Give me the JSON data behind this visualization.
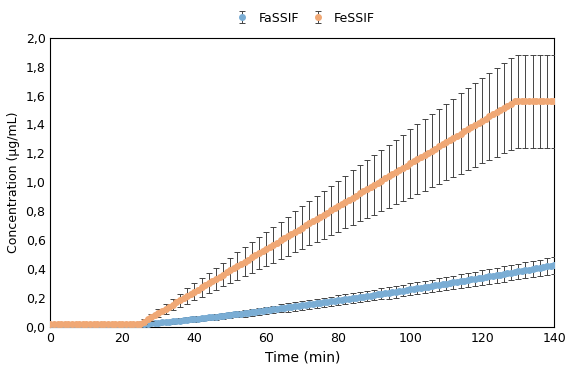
{
  "title": "",
  "xlabel": "Time (min)",
  "ylabel": "Concentration (μg/mL)",
  "xlim": [
    0,
    140
  ],
  "ylim": [
    0,
    2.0
  ],
  "yticks": [
    0.0,
    0.2,
    0.4,
    0.6,
    0.8,
    1.0,
    1.2,
    1.4,
    1.6,
    1.8,
    2.0
  ],
  "xticks": [
    0,
    20,
    40,
    60,
    80,
    100,
    120,
    140
  ],
  "fassif_color": "#7aadd4",
  "fessif_color": "#f0a875",
  "ecolor": "#444444",
  "legend_labels": [
    "FaSSIF",
    "FeSSIF"
  ],
  "background_color": "#ffffff",
  "marker_size": 4,
  "elinewidth": 0.7,
  "capsize": 2,
  "capthick": 0.7
}
